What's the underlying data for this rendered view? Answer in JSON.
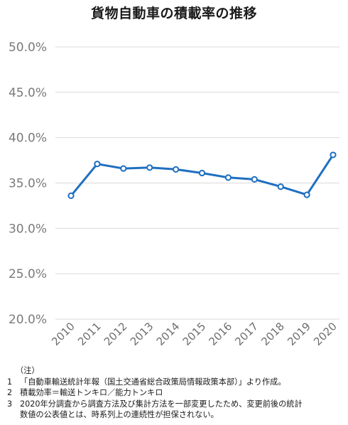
{
  "chart_data": {
    "type": "line",
    "title": "貨物自動車の積載率の推移",
    "categories": [
      "2010",
      "2011",
      "2012",
      "2013",
      "2014",
      "2015",
      "2016",
      "2017",
      "2018",
      "2019",
      "2020"
    ],
    "series": [
      {
        "values": [
          33.6,
          37.1,
          36.6,
          36.7,
          36.5,
          36.1,
          35.6,
          35.4,
          34.6,
          33.7,
          38.1
        ]
      }
    ],
    "yticks": [
      "20.0%",
      "25.0%",
      "30.0%",
      "35.0%",
      "40.0%",
      "45.0%",
      "50.0%"
    ],
    "ylim": [
      20,
      50
    ],
    "grid": true,
    "line_color": "#1f6fc0"
  },
  "notes": {
    "heading": "（注）",
    "items": [
      {
        "num": "1",
        "text": "「自動車輸送統計年報（国土交通省総合政策局情報政策本部）」より作成。",
        "cont": ""
      },
      {
        "num": "2",
        "text": "積載効率＝輸送トンキロ／能力トンキロ",
        "cont": ""
      },
      {
        "num": "3",
        "text": "2020年分調査から調査方法及び集計方法を一部変更したため、変更前後の統計",
        "cont": "数値の公表値とは、時系列上の連続性が担保されない。"
      }
    ]
  }
}
